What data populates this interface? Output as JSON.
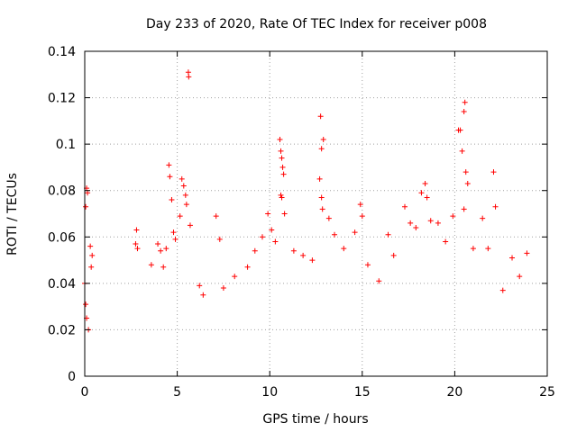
{
  "chart_data": {
    "type": "scatter",
    "title": "Day 233 of 2020, Rate Of TEC Index for receiver p008",
    "xlabel": "GPS time / hours",
    "ylabel": "ROTI / TECUs",
    "xlim": [
      0,
      25
    ],
    "ylim": [
      0,
      0.14
    ],
    "xticks": [
      0,
      5,
      10,
      15,
      20,
      25
    ],
    "xtick_labels": [
      "0",
      "5",
      "10",
      "15",
      "20",
      "25"
    ],
    "yticks": [
      0,
      0.02,
      0.04,
      0.06,
      0.08,
      0.1,
      0.12,
      0.14
    ],
    "ytick_labels": [
      "0",
      "0.02",
      "0.04",
      "0.06",
      "0.08",
      "0.1",
      "0.12",
      "0.14"
    ],
    "grid": true,
    "marker": "+",
    "color": "#ff0000",
    "series": [
      {
        "points": [
          [
            0.05,
            0.073
          ],
          [
            0.1,
            0.081
          ],
          [
            0.15,
            0.079
          ],
          [
            0.3,
            0.056
          ],
          [
            0.35,
            0.047
          ],
          [
            0.4,
            0.052
          ],
          [
            0.0,
            0.04
          ],
          [
            0.05,
            0.031
          ],
          [
            0.1,
            0.025
          ],
          [
            0.2,
            0.02
          ],
          [
            2.75,
            0.057
          ],
          [
            2.8,
            0.063
          ],
          [
            2.85,
            0.055
          ],
          [
            3.6,
            0.048
          ],
          [
            3.95,
            0.057
          ],
          [
            4.1,
            0.054
          ],
          [
            4.25,
            0.047
          ],
          [
            4.4,
            0.055
          ],
          [
            4.55,
            0.091
          ],
          [
            4.6,
            0.086
          ],
          [
            4.7,
            0.076
          ],
          [
            4.8,
            0.062
          ],
          [
            4.9,
            0.059
          ],
          [
            5.15,
            0.069
          ],
          [
            5.25,
            0.085
          ],
          [
            5.35,
            0.082
          ],
          [
            5.45,
            0.078
          ],
          [
            5.5,
            0.074
          ],
          [
            5.6,
            0.131
          ],
          [
            5.62,
            0.129
          ],
          [
            5.7,
            0.065
          ],
          [
            6.2,
            0.039
          ],
          [
            6.4,
            0.035
          ],
          [
            7.1,
            0.069
          ],
          [
            7.3,
            0.059
          ],
          [
            7.5,
            0.038
          ],
          [
            8.1,
            0.043
          ],
          [
            8.8,
            0.047
          ],
          [
            9.2,
            0.054
          ],
          [
            9.6,
            0.06
          ],
          [
            9.9,
            0.07
          ],
          [
            10.1,
            0.063
          ],
          [
            10.3,
            0.058
          ],
          [
            10.55,
            0.102
          ],
          [
            10.6,
            0.097
          ],
          [
            10.65,
            0.094
          ],
          [
            10.7,
            0.09
          ],
          [
            10.75,
            0.087
          ],
          [
            10.6,
            0.078
          ],
          [
            10.65,
            0.077
          ],
          [
            10.8,
            0.07
          ],
          [
            11.3,
            0.054
          ],
          [
            11.8,
            0.052
          ],
          [
            12.3,
            0.05
          ],
          [
            12.7,
            0.085
          ],
          [
            12.75,
            0.112
          ],
          [
            12.8,
            0.098
          ],
          [
            12.9,
            0.102
          ],
          [
            12.8,
            0.077
          ],
          [
            12.85,
            0.072
          ],
          [
            13.2,
            0.068
          ],
          [
            13.5,
            0.061
          ],
          [
            14.0,
            0.055
          ],
          [
            14.6,
            0.062
          ],
          [
            14.9,
            0.074
          ],
          [
            15.0,
            0.069
          ],
          [
            15.3,
            0.048
          ],
          [
            15.9,
            0.041
          ],
          [
            16.4,
            0.061
          ],
          [
            16.7,
            0.052
          ],
          [
            17.3,
            0.073
          ],
          [
            17.6,
            0.066
          ],
          [
            17.9,
            0.064
          ],
          [
            18.2,
            0.079
          ],
          [
            18.4,
            0.083
          ],
          [
            18.5,
            0.077
          ],
          [
            18.7,
            0.067
          ],
          [
            19.1,
            0.066
          ],
          [
            19.5,
            0.058
          ],
          [
            19.9,
            0.069
          ],
          [
            20.2,
            0.106
          ],
          [
            20.3,
            0.106
          ],
          [
            20.4,
            0.097
          ],
          [
            20.5,
            0.114
          ],
          [
            20.55,
            0.118
          ],
          [
            20.6,
            0.088
          ],
          [
            20.7,
            0.083
          ],
          [
            20.5,
            0.072
          ],
          [
            21.0,
            0.055
          ],
          [
            21.5,
            0.068
          ],
          [
            21.8,
            0.055
          ],
          [
            22.1,
            0.088
          ],
          [
            22.2,
            0.073
          ],
          [
            22.6,
            0.037
          ],
          [
            23.1,
            0.051
          ],
          [
            23.5,
            0.043
          ],
          [
            23.9,
            0.053
          ]
        ]
      }
    ]
  }
}
